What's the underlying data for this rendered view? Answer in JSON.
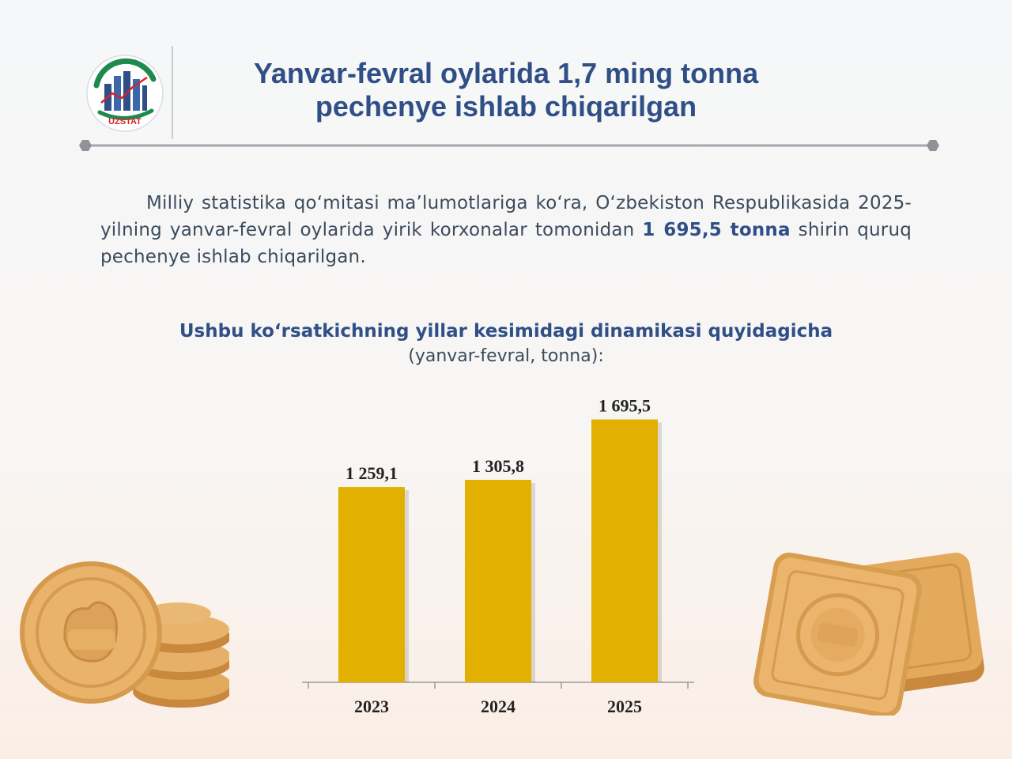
{
  "logo": {
    "text": "UZSTAT"
  },
  "header": {
    "title": "Yanvar-fevral oylarida 1,7 ming tonna pechenye ishlab chiqarilgan"
  },
  "intro": {
    "text_before": "Milliy statistika qo‘mitasi ma’lumotlariga ko‘ra, O‘zbekiston Respublikasida 2025-yilning yanvar-fevral oylarida yirik korxonalar tomonidan ",
    "highlight": "1 695,5 tonna",
    "text_after": " shirin quruq pechenye ishlab chiqarilgan."
  },
  "chart_heading": {
    "title": "Ushbu ko‘rsatkichning yillar kesimidagi dinamikasi quyidagicha",
    "subtitle": "(yanvar-fevral, tonna):"
  },
  "colors": {
    "bar": "#e2b000",
    "title": "#2f4f86",
    "text": "#3b4b5c"
  },
  "chart_data": {
    "type": "bar",
    "categories": [
      "2023",
      "2024",
      "2025"
    ],
    "values": [
      1259.1,
      1305.8,
      1695.5
    ],
    "data_labels": [
      "1 259,1",
      "1 305,8",
      "1 695,5"
    ],
    "title": "Ushbu ko‘rsatkichning yillar kesimidagi dinamikasi quyidagicha",
    "subtitle": "(yanvar-fevral, tonna):",
    "xlabel": "",
    "ylabel": "",
    "ylim": [
      0,
      1800
    ],
    "grid": false,
    "legend": "none"
  }
}
